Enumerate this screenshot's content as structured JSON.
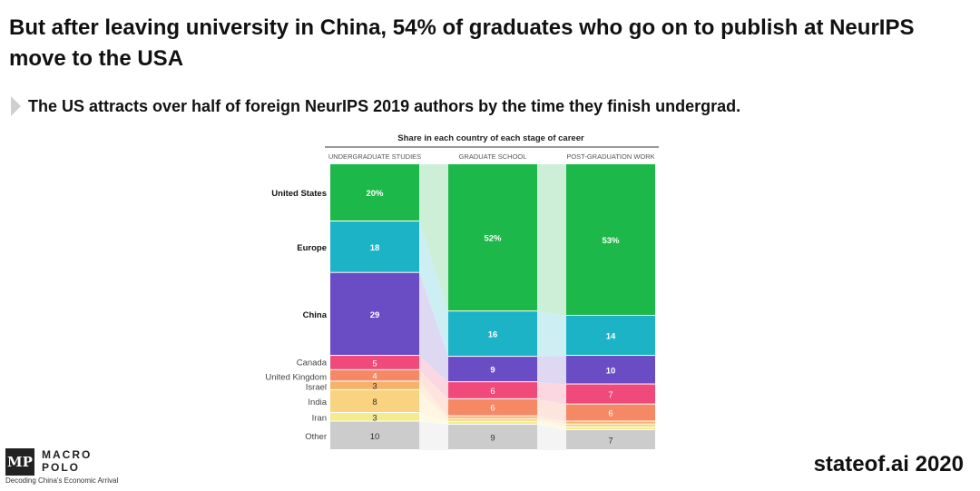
{
  "title": "But after leaving university in China, 54% of graduates who go on to publish at NeurIPS move to the USA",
  "subtitle": "The US attracts over half of foreign NeurIPS 2019 authors by the time they finish undergrad.",
  "footer": {
    "logo_line1": "MACRO",
    "logo_line2": "POLO",
    "logo_tagline": "Decoding China's Economic Arrival",
    "brand": "stateof.ai 2020"
  },
  "chart_data": {
    "type": "bar",
    "stacked": true,
    "normalized": true,
    "title": "Share in each country of each stage of career",
    "categories": [
      "UNDERGRADUATE STUDIES",
      "GRADUATE SCHOOL",
      "POST-GRADUATION WORK"
    ],
    "series": [
      {
        "name": "United States",
        "color": "#1db84a",
        "values": [
          20,
          52,
          53
        ],
        "labels": [
          "20%",
          "52%",
          "53%"
        ]
      },
      {
        "name": "Europe",
        "color": "#1cb3c6",
        "values": [
          18,
          16,
          14
        ],
        "labels": [
          "18",
          "16",
          "14"
        ]
      },
      {
        "name": "China",
        "color": "#6a4cc4",
        "values": [
          29,
          9,
          10
        ],
        "labels": [
          "29",
          "9",
          "10"
        ]
      },
      {
        "name": "Canada",
        "color": "#ef4a7a",
        "values": [
          5,
          6,
          7
        ],
        "labels": [
          "5",
          "6",
          "7"
        ]
      },
      {
        "name": "United Kingdom",
        "color": "#f58865",
        "values": [
          4,
          6,
          6
        ],
        "labels": [
          "4",
          "6",
          "6"
        ]
      },
      {
        "name": "Israel",
        "color": "#f6b26b",
        "values": [
          3,
          1,
          1
        ],
        "labels": [
          "3",
          "",
          ""
        ]
      },
      {
        "name": "India",
        "color": "#f9d37f",
        "values": [
          8,
          1,
          1
        ],
        "labels": [
          "8",
          "",
          ""
        ]
      },
      {
        "name": "Iran",
        "color": "#f3ec8f",
        "values": [
          3,
          1,
          1
        ],
        "labels": [
          "3",
          "",
          ""
        ]
      },
      {
        "name": "Other",
        "color": "#cccccc",
        "values": [
          10,
          9,
          7
        ],
        "labels": [
          "10",
          "9",
          "7"
        ]
      }
    ],
    "bold_series": [
      "United States",
      "Europe",
      "China"
    ],
    "ylim": [
      0,
      100
    ],
    "grid": false,
    "legend": "left"
  }
}
